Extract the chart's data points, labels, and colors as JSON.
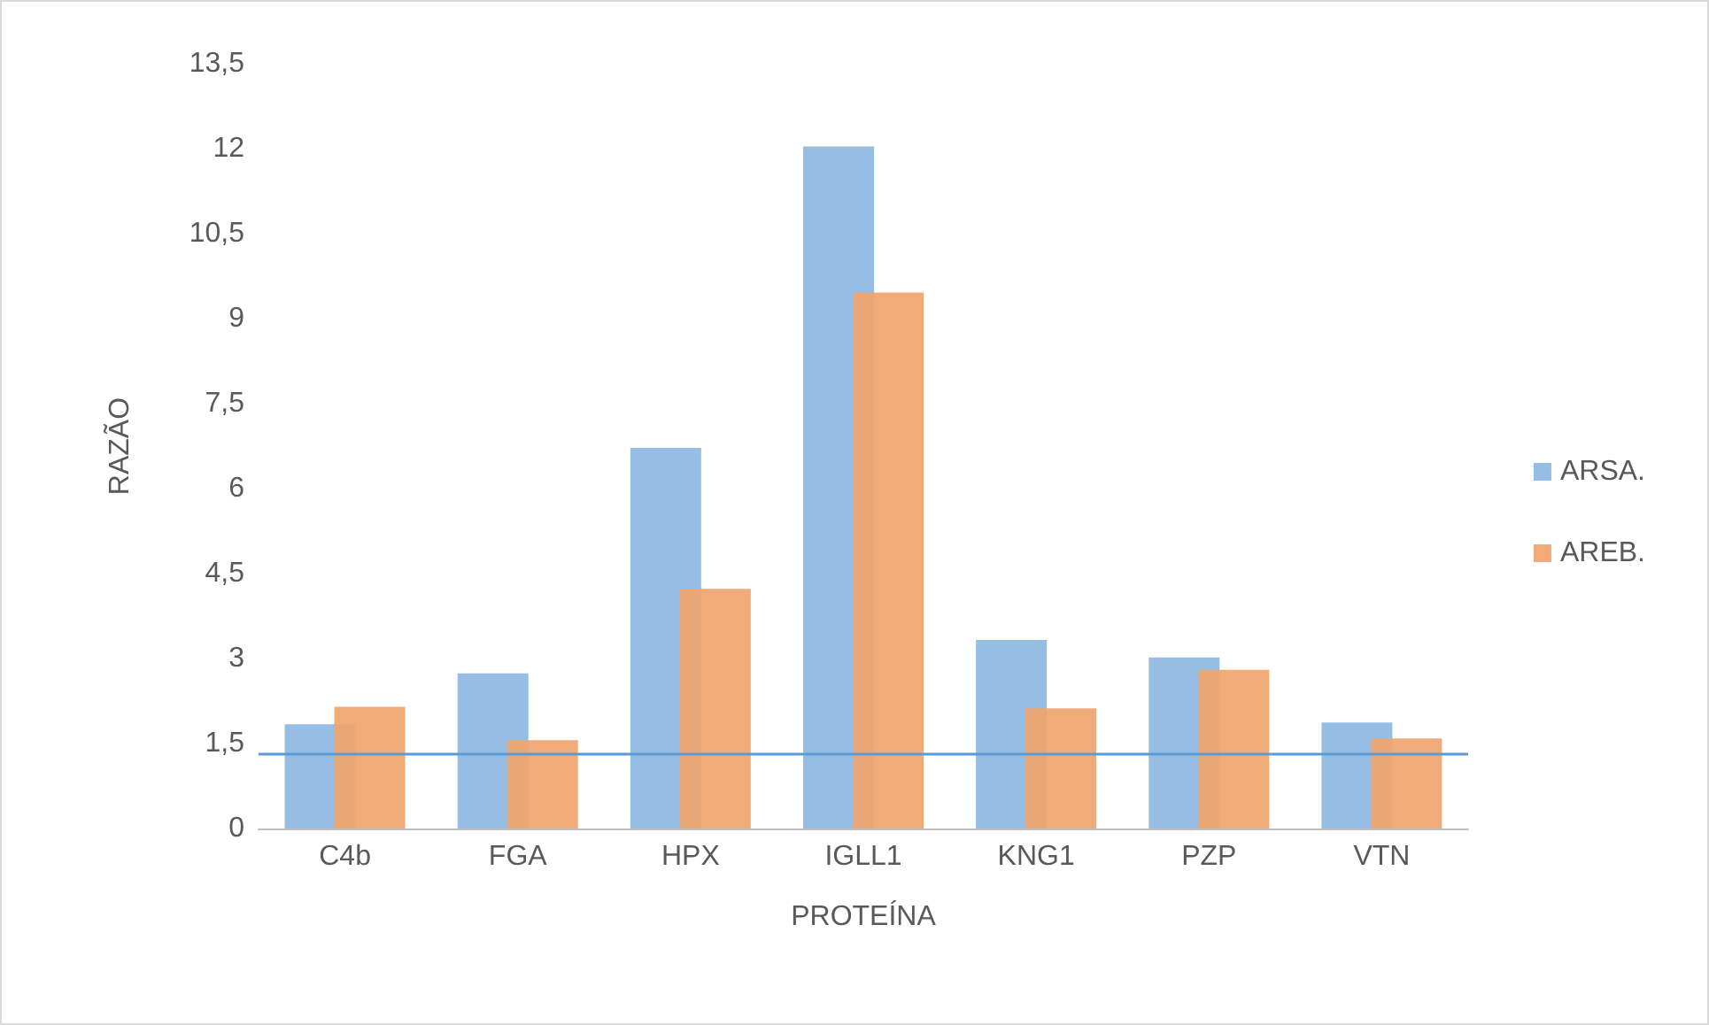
{
  "chart_data": {
    "type": "bar",
    "xlabel": "PROTEÍNA",
    "ylabel": "RAZÃO",
    "categories": [
      "C4b",
      "FGA",
      "HPX",
      "IGLL1",
      "KNG1",
      "PZP",
      "VTN"
    ],
    "series": [
      {
        "name": "ARSA.",
        "color": "#8db8e2",
        "values": [
          1.84,
          2.74,
          6.72,
          12.04,
          3.33,
          3.02,
          1.87
        ]
      },
      {
        "name": "AREB.",
        "color": "#f0a46c",
        "values": [
          2.15,
          1.56,
          4.23,
          9.46,
          2.12,
          2.8,
          1.59
        ]
      }
    ],
    "ylim": [
      0,
      13.5
    ],
    "yticks": [
      0,
      {
        "value": 1.5,
        "label": "1,5"
      },
      3,
      {
        "value": 4.5,
        "label": "4,5"
      },
      6,
      {
        "value": 7.5,
        "label": "7,5"
      },
      9,
      {
        "value": 10.5,
        "label": "10,5"
      },
      12,
      {
        "value": 13.5,
        "label": "13,5"
      }
    ],
    "ref_lines": [
      {
        "axis": "y",
        "value": 1.33,
        "color": "#5b9bd5"
      }
    ],
    "grid": false,
    "legend": "right"
  }
}
